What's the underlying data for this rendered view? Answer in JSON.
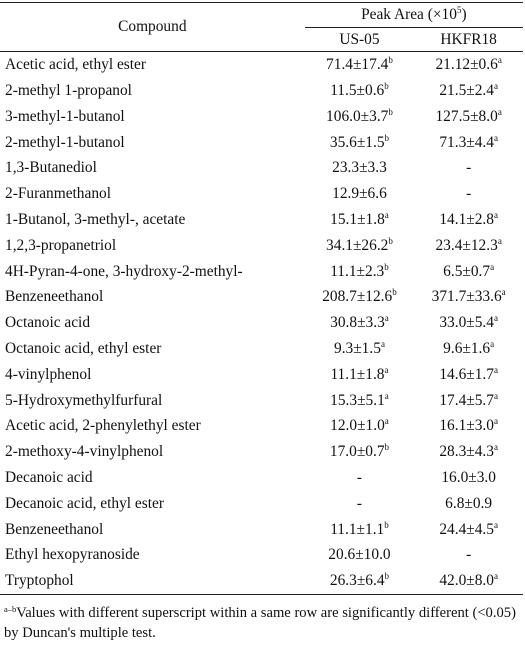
{
  "header": {
    "compound": "Compound",
    "peak_area_prefix": "Peak Area (×10",
    "peak_area_exp": "5",
    "peak_area_suffix": ")",
    "col1": "US-05",
    "col2": "HKFR18"
  },
  "rows": [
    {
      "name": "Acetic acid, ethyl ester",
      "us": "71.4±17.4",
      "us_sup": "b",
      "hk": "21.12±0.6",
      "hk_sup": "a"
    },
    {
      "name": "2-methyl 1-propanol",
      "us": "11.5±0.6",
      "us_sup": "b",
      "hk": "21.5±2.4",
      "hk_sup": "a"
    },
    {
      "name": "3-methyl-1-butanol",
      "us": "106.0±3.7",
      "us_sup": "b",
      "hk": "127.5±8.0",
      "hk_sup": "a"
    },
    {
      "name": "2-methyl-1-butanol",
      "us": "35.6±1.5",
      "us_sup": "b",
      "hk": "71.3±4.4",
      "hk_sup": "a"
    },
    {
      "name": "1,3-Butanediol",
      "us": "23.3±3.3",
      "us_sup": "",
      "hk": "-",
      "hk_sup": ""
    },
    {
      "name": "2-Furanmethanol",
      "us": "12.9±6.6",
      "us_sup": "",
      "hk": "-",
      "hk_sup": ""
    },
    {
      "name": "1-Butanol, 3-methyl-, acetate",
      "us": "15.1±1.8",
      "us_sup": "a",
      "hk": "14.1±2.8",
      "hk_sup": "a"
    },
    {
      "name": "1,2,3-propanetriol",
      "us": "34.1±26.2",
      "us_sup": "b",
      "hk": "23.4±12.3",
      "hk_sup": "a"
    },
    {
      "name": "4H-Pyran-4-one, 3-hydroxy-2-methyl-",
      "us": "11.1±2.3",
      "us_sup": "b",
      "hk": "6.5±0.7",
      "hk_sup": "a"
    },
    {
      "name": "Benzeneethanol",
      "us": "208.7±12.6",
      "us_sup": "b",
      "hk": "371.7±33.6",
      "hk_sup": "a"
    },
    {
      "name": "Octanoic acid",
      "us": "30.8±3.3",
      "us_sup": "a",
      "hk": "33.0±5.4",
      "hk_sup": "a"
    },
    {
      "name": "Octanoic acid, ethyl ester",
      "us": "9.3±1.5",
      "us_sup": "a",
      "hk": "9.6±1.6",
      "hk_sup": "a"
    },
    {
      "name": "4-vinylphenol",
      "us": "11.1±1.8",
      "us_sup": "a",
      "hk": "14.6±1.7",
      "hk_sup": "a"
    },
    {
      "name": "5-Hydroxymethylfurfural",
      "us": "15.3±5.1",
      "us_sup": "a",
      "hk": "17.4±5.7",
      "hk_sup": "a"
    },
    {
      "name": "Acetic acid, 2-phenylethyl ester",
      "us": "12.0±1.0",
      "us_sup": "a",
      "hk": "16.1±3.0",
      "hk_sup": "a"
    },
    {
      "name": "2-methoxy-4-vinylphenol",
      "us": "17.0±0.7",
      "us_sup": "b",
      "hk": "28.3±4.3",
      "hk_sup": "a"
    },
    {
      "name": "Decanoic acid",
      "us": "-",
      "us_sup": "",
      "hk": "16.0±3.0",
      "hk_sup": ""
    },
    {
      "name": "Decanoic acid, ethyl ester",
      "us": "-",
      "us_sup": "",
      "hk": "6.8±0.9",
      "hk_sup": ""
    },
    {
      "name": "Benzeneethanol",
      "us": "11.1±1.1",
      "us_sup": "b",
      "hk": "24.4±4.5",
      "hk_sup": "a"
    },
    {
      "name": "Ethyl hexopyranoside",
      "us": "20.6±10.0",
      "us_sup": "",
      "hk": "-",
      "hk_sup": ""
    },
    {
      "name": "Tryptophol",
      "us": "26.3±6.4",
      "us_sup": "b",
      "hk": "42.0±8.0",
      "hk_sup": "a"
    }
  ],
  "footnote": {
    "marker": "a–b",
    "text": "Values with different superscript within a same row are significantly different (<0.05) by Duncan's multiple test."
  }
}
